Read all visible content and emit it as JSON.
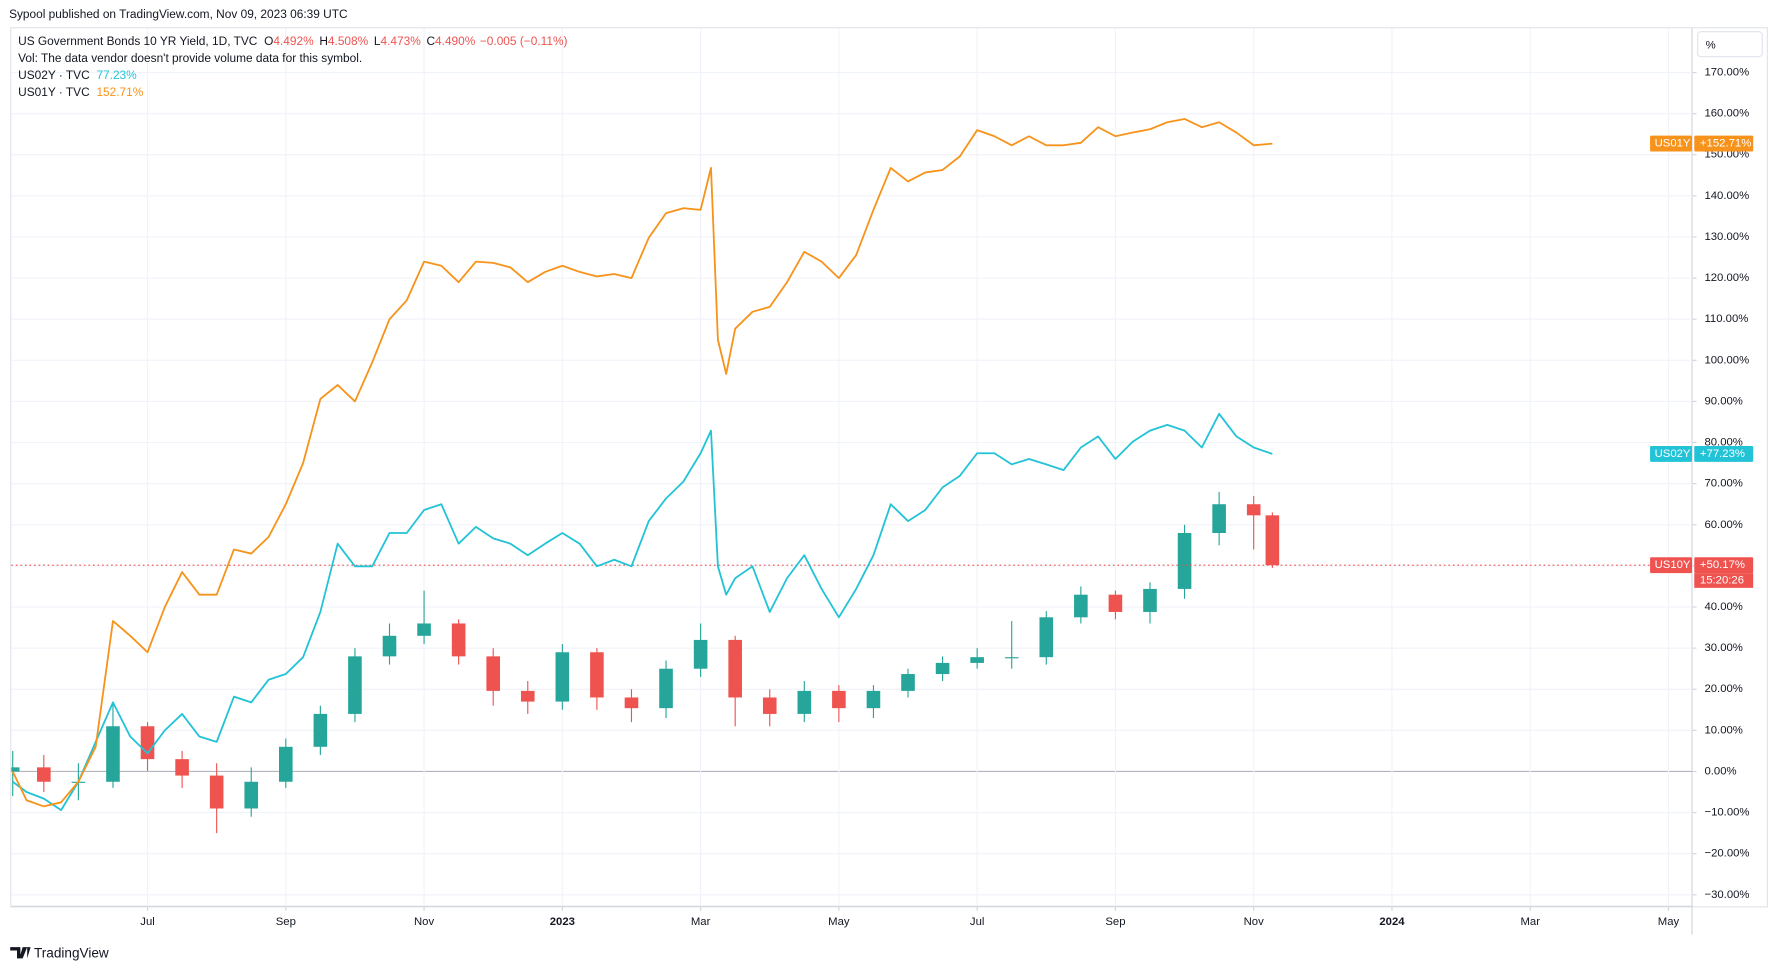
{
  "header": "Sypool published on TradingView.com, Nov 09, 2023 06:39 UTC",
  "footer_brand": "TradingView",
  "scale_button": "%",
  "chart_data": {
    "type": "candlestick",
    "title": "US Government Bonds 10 YR Yield, 1D, TVC",
    "ohlc": [
      {
        "key": "O",
        "value": "4.492%"
      },
      {
        "key": "H",
        "value": "4.508%"
      },
      {
        "key": "L",
        "value": "4.473%"
      },
      {
        "key": "C",
        "value": "4.490%"
      }
    ],
    "change": "−0.005 (−0.11%)",
    "note": "Vol: The data vendor doesn't provide volume data for this symbol.",
    "xlim": [
      4.03,
      28.34
    ],
    "xticks": [
      {
        "value": 6,
        "label": "Jul"
      },
      {
        "value": 8,
        "label": "Sep"
      },
      {
        "value": 10,
        "label": "Nov"
      },
      {
        "value": 12,
        "label": "2023"
      },
      {
        "value": 14,
        "label": "Mar"
      },
      {
        "value": 16,
        "label": "May"
      },
      {
        "value": 18,
        "label": "Jul"
      },
      {
        "value": 20,
        "label": "Sep"
      },
      {
        "value": 22,
        "label": "Nov"
      },
      {
        "value": 24,
        "label": "2024"
      },
      {
        "value": 26,
        "label": "Mar"
      },
      {
        "value": 28,
        "label": "May"
      }
    ],
    "ylim": [
      -32.79,
      180.75
    ],
    "yticks": [
      {
        "value": -30,
        "label": "−30.00%"
      },
      {
        "value": -20,
        "label": "−20.00%"
      },
      {
        "value": -10,
        "label": "−10.00%"
      },
      {
        "value": 0,
        "label": "0.00%"
      },
      {
        "value": 10,
        "label": "10.00%"
      },
      {
        "value": 20,
        "label": "20.00%"
      },
      {
        "value": 30,
        "label": "30.00%"
      },
      {
        "value": 40,
        "label": "40.00%"
      },
      {
        "value": 50,
        "label": "50.00%"
      },
      {
        "value": 60,
        "label": "60.00%"
      },
      {
        "value": 70,
        "label": "70.00%"
      },
      {
        "value": 80,
        "label": "80.00%"
      },
      {
        "value": 90,
        "label": "90.00%"
      },
      {
        "value": 100,
        "label": "100.00%"
      },
      {
        "value": 110,
        "label": "110.00%"
      },
      {
        "value": 120,
        "label": "120.00%"
      },
      {
        "value": 130,
        "label": "130.00%"
      },
      {
        "value": 140,
        "label": "140.00%"
      },
      {
        "value": 150,
        "label": "150.00%"
      },
      {
        "value": 160,
        "label": "160.00%"
      },
      {
        "value": 170,
        "label": "170.00%"
      }
    ],
    "grid": true,
    "series": [
      {
        "name": "US10Y",
        "type": "candlestick",
        "color": "#ef5350",
        "up_color": "#26a69a",
        "down_color": "#ef5350",
        "last_label": "+50.17%",
        "countdown": "15:20:26",
        "x": [
          4.05,
          4.5,
          5,
          5.5,
          6,
          6.5,
          7,
          7.5,
          8,
          8.5,
          9,
          9.5,
          10,
          10.5,
          11,
          11.5,
          12,
          12.5,
          13,
          13.5,
          14,
          14.5,
          15,
          15.5,
          16,
          16.5,
          17,
          17.5,
          18,
          18.5,
          19,
          19.5,
          20,
          20.5,
          21,
          21.5,
          22,
          22.27
        ],
        "open": [
          0,
          1,
          -2.5,
          -2.5,
          11,
          3,
          -1,
          -9,
          -2.5,
          6,
          14,
          28,
          33,
          36,
          28,
          19.6,
          17,
          29,
          18,
          15.4,
          25,
          32,
          18,
          14,
          19.6,
          15.4,
          19.6,
          23.7,
          26.4,
          27.8,
          27.8,
          37.5,
          43,
          38.8,
          44.4,
          58,
          65,
          62.3
        ],
        "high": [
          5,
          4,
          2,
          17,
          12,
          5,
          2,
          1,
          8,
          16,
          30,
          36,
          44,
          37,
          30,
          22,
          31,
          30,
          20,
          27,
          36,
          33,
          20,
          22,
          21,
          21,
          25,
          28,
          30,
          36.6,
          39,
          45,
          44,
          46,
          60,
          68,
          67,
          63
        ],
        "low": [
          -6,
          -5,
          -7,
          -4,
          0,
          -4,
          -15,
          -11,
          -4,
          4,
          12,
          26,
          31,
          26,
          16,
          14,
          15,
          15,
          12,
          13,
          23,
          11,
          11,
          12,
          12,
          13,
          18,
          22,
          25,
          25,
          26,
          36,
          37,
          36,
          42,
          55,
          54,
          49.5
        ],
        "close": [
          1,
          -2.5,
          -2.5,
          11,
          3,
          -1,
          -9,
          -2.5,
          6,
          14,
          28,
          33,
          36,
          28,
          19.6,
          17,
          29,
          18,
          15.4,
          25,
          32,
          18,
          14,
          19.6,
          15.4,
          19.6,
          23.7,
          26.4,
          27.8,
          27.8,
          37.5,
          43,
          38.8,
          44.4,
          58,
          65,
          62.3,
          50.17
        ]
      },
      {
        "name": "US02Y",
        "type": "line",
        "color": "#22c3d6",
        "legend_label": "US02Y · TVC",
        "legend_value": "77.23%",
        "last_label": "+77.23%",
        "x": [
          4.05,
          4.25,
          4.5,
          4.75,
          5,
          5.25,
          5.5,
          5.75,
          6,
          6.25,
          6.5,
          6.75,
          7,
          7.25,
          7.5,
          7.75,
          8,
          8.25,
          8.5,
          8.75,
          9,
          9.25,
          9.5,
          9.75,
          10,
          10.25,
          10.5,
          10.75,
          11,
          11.25,
          11.5,
          11.75,
          12,
          12.25,
          12.5,
          12.75,
          13,
          13.25,
          13.5,
          13.75,
          14,
          14.15,
          14.25,
          14.37,
          14.5,
          14.75,
          15,
          15.25,
          15.5,
          15.75,
          16,
          16.25,
          16.5,
          16.75,
          17,
          17.25,
          17.5,
          17.75,
          18,
          18.25,
          18.5,
          18.75,
          19,
          19.25,
          19.5,
          19.75,
          20,
          20.25,
          20.5,
          20.75,
          21,
          21.25,
          21.5,
          21.75,
          22,
          22.27
        ],
        "values": [
          -2.5,
          -5,
          -6.6,
          -9.4,
          -2.5,
          7.2,
          16.8,
          8.5,
          4.4,
          10,
          14,
          8.5,
          7.2,
          18.2,
          16.8,
          22.3,
          23.7,
          27.8,
          38.8,
          55.4,
          49.9,
          49.9,
          58,
          58,
          63.6,
          65,
          55.4,
          59.5,
          56.7,
          55.4,
          52.6,
          55.4,
          58,
          55.4,
          49.9,
          51.5,
          49.9,
          60.9,
          66.4,
          70.5,
          77.4,
          82.9,
          49.9,
          43,
          47,
          49.9,
          38.8,
          47,
          52.6,
          44.4,
          37.5,
          44.4,
          52.6,
          65,
          60.9,
          63.6,
          69.1,
          71.9,
          77.4,
          77.4,
          74.7,
          76,
          74.7,
          73.3,
          78.8,
          81.5,
          76,
          80.2,
          82.9,
          84.3,
          82.9,
          78.8,
          87,
          81.5,
          78.8,
          77.23
        ]
      },
      {
        "name": "US01Y",
        "type": "line",
        "color": "#f7931a",
        "legend_label": "US01Y · TVC",
        "legend_value": "152.71%",
        "last_label": "+152.71%",
        "x": [
          4.05,
          4.25,
          4.5,
          4.75,
          5,
          5.25,
          5.5,
          5.75,
          6,
          6.25,
          6.5,
          6.75,
          7,
          7.25,
          7.5,
          7.75,
          8,
          8.25,
          8.5,
          8.75,
          9,
          9.25,
          9.5,
          9.75,
          10,
          10.25,
          10.5,
          10.75,
          11,
          11.25,
          11.5,
          11.75,
          12,
          12.25,
          12.5,
          12.75,
          13,
          13.25,
          13.5,
          13.75,
          14,
          14.15,
          14.25,
          14.37,
          14.5,
          14.75,
          15,
          15.25,
          15.5,
          15.75,
          16,
          16.25,
          16.5,
          16.75,
          17,
          17.25,
          17.5,
          17.75,
          18,
          18.25,
          18.5,
          18.75,
          19,
          19.25,
          19.5,
          19.75,
          20,
          20.25,
          20.5,
          20.75,
          21,
          21.25,
          21.5,
          21.75,
          22,
          22.27
        ],
        "values": [
          0,
          -7,
          -8.5,
          -7.5,
          -2.5,
          6,
          36.6,
          33,
          29,
          40,
          48.5,
          43,
          43,
          54,
          53,
          57,
          65,
          75,
          90.6,
          94,
          90,
          99.5,
          110,
          114.6,
          124,
          123,
          119,
          124,
          123.7,
          122.6,
          119,
          121.5,
          123,
          121.5,
          120.4,
          121,
          120,
          129.8,
          135.8,
          137,
          136.6,
          146.8,
          105,
          96.7,
          107.7,
          111.8,
          113,
          119,
          126.4,
          124,
          120,
          125.6,
          136.6,
          146.8,
          143.5,
          145.7,
          146.3,
          149.6,
          156,
          154.5,
          152.3,
          154.5,
          152.3,
          152.3,
          152.9,
          156.7,
          154.5,
          155.4,
          156.2,
          157.9,
          158.7,
          156.7,
          157.9,
          155.4,
          152.3,
          152.71
        ]
      }
    ]
  }
}
